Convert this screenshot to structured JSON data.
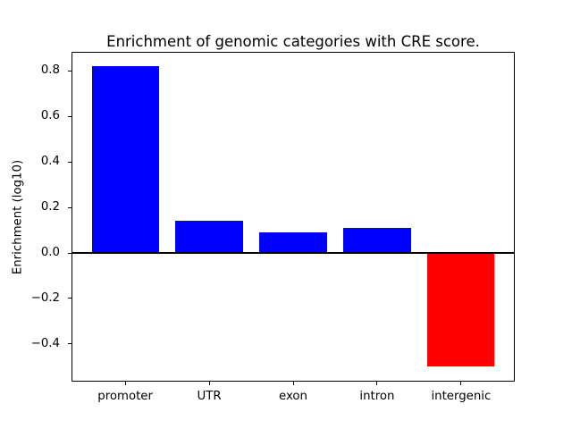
{
  "chart_data": {
    "type": "bar",
    "title": "Enrichment of genomic categories with CRE score.",
    "ylabel": "Enrichment (log10)",
    "xlabel": "",
    "categories": [
      "promoter",
      "UTR",
      "exon",
      "intron",
      "intergenic"
    ],
    "values": [
      0.82,
      0.14,
      0.09,
      0.11,
      -0.5
    ],
    "bar_colors": [
      "#0000ff",
      "#0000ff",
      "#0000ff",
      "#0000ff",
      "#ff0000"
    ],
    "positive_color": "#0000ff",
    "negative_color": "#ff0000",
    "yticks": [
      {
        "value": -0.4,
        "label": "−0.4"
      },
      {
        "value": -0.2,
        "label": "−0.2"
      },
      {
        "value": 0.0,
        "label": "0.0"
      },
      {
        "value": 0.2,
        "label": "0.2"
      },
      {
        "value": 0.4,
        "label": "0.4"
      },
      {
        "value": 0.6,
        "label": "0.6"
      },
      {
        "value": 0.8,
        "label": "0.8"
      }
    ],
    "ylim": [
      -0.566,
      0.886
    ],
    "xlim": [
      -0.64,
      4.64
    ],
    "bar_width": 0.8,
    "grid": false,
    "legend": false,
    "zero_line": {
      "y": 0,
      "color": "#000000"
    },
    "background": "#ffffff",
    "frame_color": "#000000",
    "text_color": "#000000"
  }
}
